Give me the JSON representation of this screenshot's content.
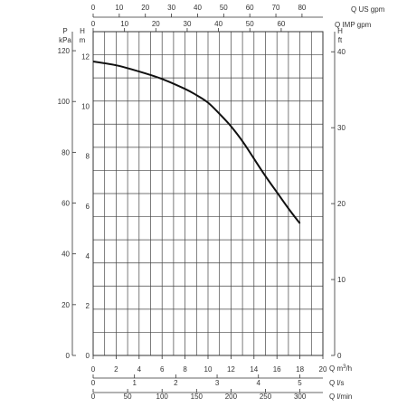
{
  "chart_data": {
    "type": "line",
    "grid": true,
    "colors": {
      "curve": "#111111",
      "grid": "#444444",
      "text": "#333333"
    },
    "units": {
      "us_gpm": "Q US gpm",
      "imp_gpm": "Q IMP gpm",
      "p": "P",
      "kpa": "kPa",
      "h_left": "H",
      "m": "m",
      "h_right": "H",
      "ft": "ft",
      "m3h_q": "Q m",
      "m3h_sup": "3",
      "m3h_end": "/h",
      "ls": "Q l/s",
      "lmin": "Q l/min"
    },
    "axes": {
      "us_gpm": {
        "range": [
          0,
          88
        ],
        "ticks": [
          0,
          10,
          20,
          30,
          40,
          50,
          60,
          70,
          80
        ]
      },
      "imp_gpm": {
        "range": [
          0,
          73.3
        ],
        "ticks": [
          0,
          10,
          20,
          30,
          40,
          50,
          60
        ]
      },
      "m3h": {
        "range": [
          0,
          20
        ],
        "ticks": [
          0,
          2,
          4,
          6,
          8,
          10,
          12,
          14,
          16,
          18,
          20
        ]
      },
      "ls": {
        "range": [
          0,
          5.56
        ],
        "ticks": [
          0,
          1,
          2,
          3,
          4,
          5
        ]
      },
      "lmin": {
        "range": [
          0,
          333.3
        ],
        "ticks": [
          0,
          50,
          100,
          150,
          200,
          250,
          300
        ]
      },
      "head_m": {
        "range": [
          0,
          13
        ],
        "ticks": [
          0,
          2,
          4,
          6,
          8,
          10,
          12
        ]
      },
      "kpa": {
        "range": [
          0,
          127.5
        ],
        "ticks": [
          0,
          20,
          40,
          60,
          80,
          100,
          120
        ]
      },
      "ft": {
        "range": [
          0,
          42.65
        ],
        "ticks": [
          0,
          10,
          20,
          30,
          40
        ]
      }
    },
    "series": [
      {
        "x": [
          0,
          2,
          4,
          6,
          8,
          9,
          10,
          11,
          12,
          13,
          14,
          15,
          16,
          17,
          18
        ],
        "y": [
          11.8,
          11.65,
          11.4,
          11.1,
          10.7,
          10.45,
          10.15,
          9.7,
          9.2,
          8.6,
          7.9,
          7.2,
          6.55,
          5.9,
          5.3
        ]
      }
    ]
  }
}
